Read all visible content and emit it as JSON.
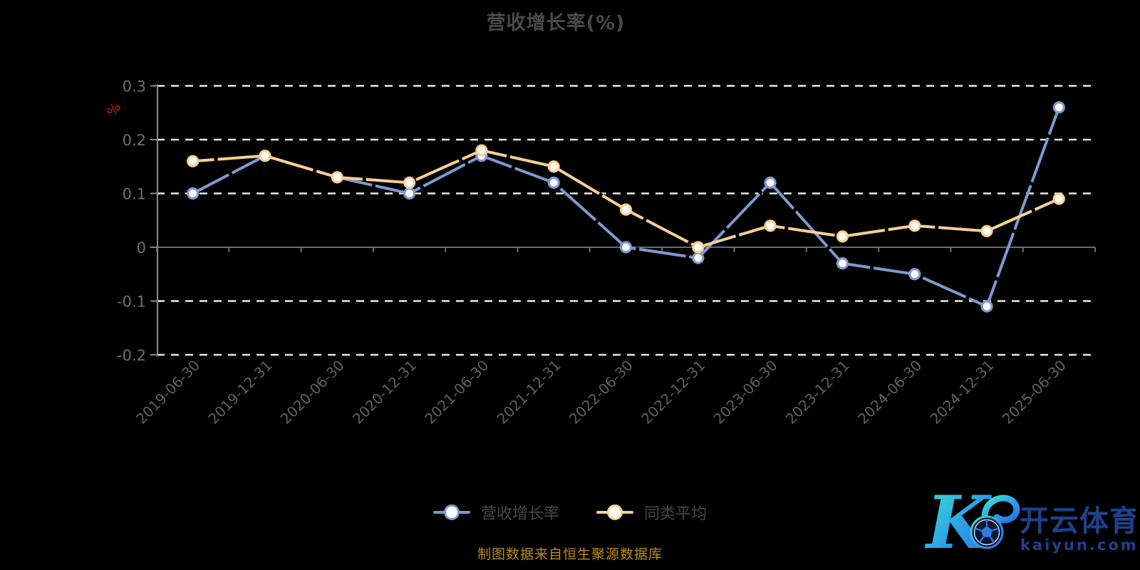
{
  "title": "营收增长率(%)",
  "source_note": "制图数据来自恒生聚源数据库",
  "legend": {
    "items": [
      {
        "label": "营收增长率",
        "color": "#7d99d0"
      },
      {
        "label": "同类平均",
        "color": "#f6d092"
      }
    ]
  },
  "logo": {
    "brand": "开云体育",
    "domain": "kaiyun.com"
  },
  "colors": {
    "background": "#000000",
    "title_text": "#4a4a4a",
    "legend_text": "#474747",
    "axis_line": "#8a8a8a",
    "zero_line": "#6b6b6b",
    "grid_dash": "#e9e9e9",
    "axis_label": "#6e6e6e",
    "x_label": "#5f5f5f",
    "percent_label": "#cf2020",
    "source_note": "#bd8d13",
    "logo_text": "#20418c",
    "logo_gradient_start": "#3de8c9",
    "logo_gradient_end": "#2b6fe4"
  },
  "chart_data": {
    "type": "line",
    "title": "营收增长率(%)",
    "xlabel": "",
    "ylabel": "%",
    "ylim": [
      -0.2,
      0.3
    ],
    "yticks": [
      0.3,
      0.2,
      0.1,
      0,
      -0.1,
      -0.2
    ],
    "grid": "horizontal dashed white lines, solid gray line at 0",
    "legend_position": "bottom",
    "x_label_rotation": 45,
    "categories": [
      "2019-06-30",
      "2019-12-31",
      "2020-06-30",
      "2020-12-31",
      "2021-06-30",
      "2021-12-31",
      "2022-06-30",
      "2022-12-31",
      "2023-06-30",
      "2023-12-31",
      "2024-06-30",
      "2024-12-31",
      "2025-06-30"
    ],
    "series": [
      {
        "name": "营收增长率",
        "color": "#7d99d0",
        "values": [
          0.1,
          0.17,
          0.13,
          0.1,
          0.17,
          0.12,
          0.0,
          -0.02,
          0.12,
          -0.03,
          -0.05,
          -0.11,
          0.26
        ]
      },
      {
        "name": "同类平均",
        "color": "#f6d092",
        "values": [
          0.16,
          0.17,
          0.13,
          0.12,
          0.18,
          0.15,
          0.07,
          0.0,
          0.04,
          0.02,
          0.04,
          0.03,
          0.09
        ]
      }
    ]
  }
}
